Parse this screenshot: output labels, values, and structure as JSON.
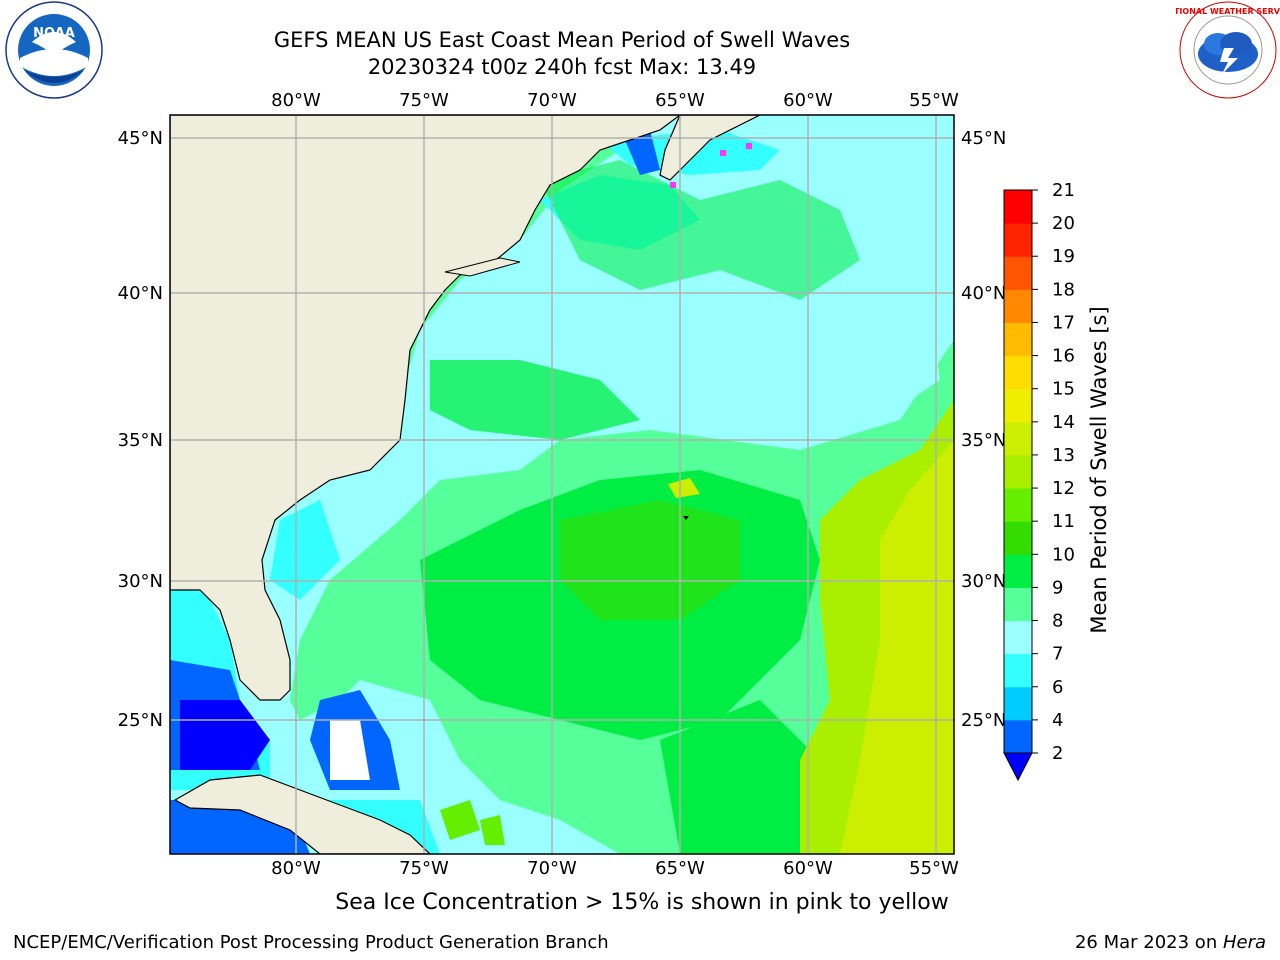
{
  "title": {
    "line1": "GEFS MEAN US East Coast Mean Period of Swell Waves",
    "line2": "20230324 t00z 240h fcst   Max: 13.49"
  },
  "map": {
    "lon_labels": [
      "80°W",
      "75°W",
      "70°W",
      "65°W",
      "60°W",
      "55°W"
    ],
    "lat_labels": [
      "45°N",
      "40°N",
      "35°N",
      "30°N",
      "25°N"
    ],
    "land_color": "#efeedd"
  },
  "colorbar": {
    "label": "Mean Period of Swell Waves [s]",
    "ticks": [
      "2",
      "4",
      "6",
      "7",
      "8",
      "9",
      "10",
      "11",
      "12",
      "13",
      "14",
      "15",
      "16",
      "17",
      "18",
      "19",
      "20",
      "21"
    ],
    "colors": [
      "#0000ff",
      "#0066ff",
      "#00ccff",
      "#33ffff",
      "#99ffff",
      "#55ff99",
      "#00ee44",
      "#33dd00",
      "#66ee00",
      "#aaee00",
      "#ccee00",
      "#eeee00",
      "#ffdd00",
      "#ffbb00",
      "#ff8800",
      "#ff5500",
      "#ff2200",
      "#ff0000"
    ],
    "extend": "min"
  },
  "note": "Sea Ice Concentration > 15% is shown in pink to yellow",
  "footer": {
    "left": "NCEP/EMC/Verification Post Processing Product Generation Branch",
    "date": "26 Mar 2023 on ",
    "host": "Hera"
  },
  "logos": {
    "noaa_text": "NOAA",
    "nws_text": "NATIONAL WEATHER SERVICE"
  }
}
